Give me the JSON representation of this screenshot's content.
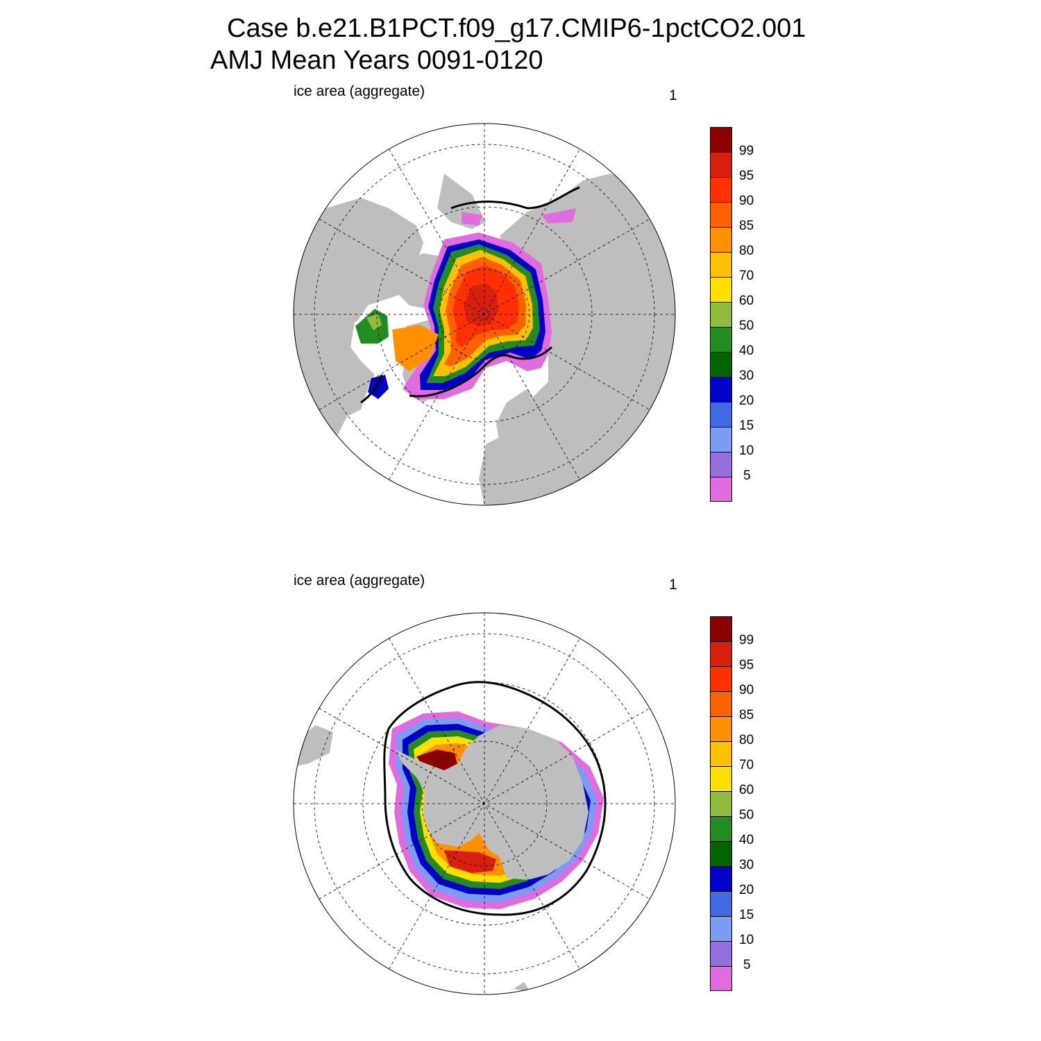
{
  "header": {
    "case_line": "Case b.e21.B1PCT.f09_g17.CMIP6-1pctCO2.001",
    "period_line": "AMJ Mean   Years 0091-0120"
  },
  "panels": [
    {
      "id": "north",
      "title": "ice area  (aggregate)",
      "number": "1",
      "hemisphere": "Northern"
    },
    {
      "id": "south",
      "title": "ice area  (aggregate)",
      "number": "1",
      "hemisphere": "Southern"
    }
  ],
  "colorbar": {
    "colors": [
      "#e06ce0",
      "#9370db",
      "#7b9cf0",
      "#4169e1",
      "#0000c8",
      "#006400",
      "#228b22",
      "#8fbc3c",
      "#ffe000",
      "#ffc000",
      "#ff9000",
      "#ff6000",
      "#ff3000",
      "#d82010",
      "#8b0000"
    ],
    "labels": [
      "5",
      "10",
      "15",
      "20",
      "30",
      "40",
      "50",
      "60",
      "70",
      "80",
      "85",
      "90",
      "95",
      "99"
    ]
  },
  "colors": {
    "land": "#bebebe",
    "ocean": "#ffffff",
    "outline": "#000000"
  }
}
